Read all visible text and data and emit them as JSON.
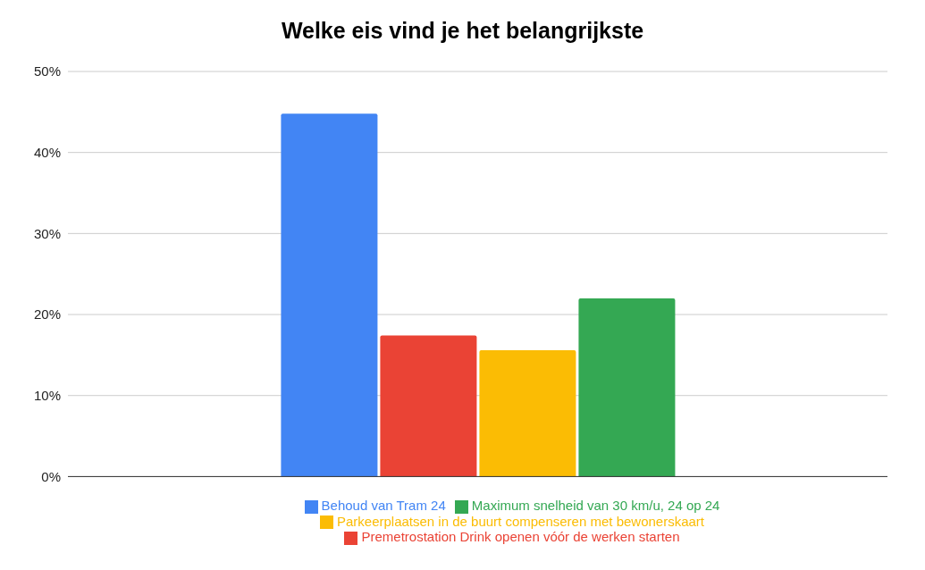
{
  "chart_data": {
    "type": "bar",
    "title": "Welke eis vind je het belangrijkste",
    "categories": [
      null
    ],
    "series": [
      {
        "name": "Behoud van Tram 24",
        "color": "#4285f4",
        "values": [
          44.8
        ]
      },
      {
        "name": "Premetrostation Drink openen vóór de werken starten",
        "color": "#ea4335",
        "values": [
          17.4
        ]
      },
      {
        "name": "Parkeerplaatsen in de buurt compenseren met bewonerskaart",
        "color": "#fbbc04",
        "values": [
          15.6
        ]
      },
      {
        "name": "Maximum snelheid van 30 km/u, 24 op 24",
        "color": "#34a853",
        "values": [
          22.0
        ]
      }
    ],
    "ylim": [
      0,
      50
    ],
    "yticks": [
      {
        "value": 0,
        "label": "0%"
      },
      {
        "value": 10,
        "label": "10%"
      },
      {
        "value": 20,
        "label": "20%"
      },
      {
        "value": 30,
        "label": "30%"
      },
      {
        "value": 40,
        "label": "40%"
      },
      {
        "value": 50,
        "label": "50%"
      }
    ],
    "grid": "y",
    "legend": "bottom"
  }
}
